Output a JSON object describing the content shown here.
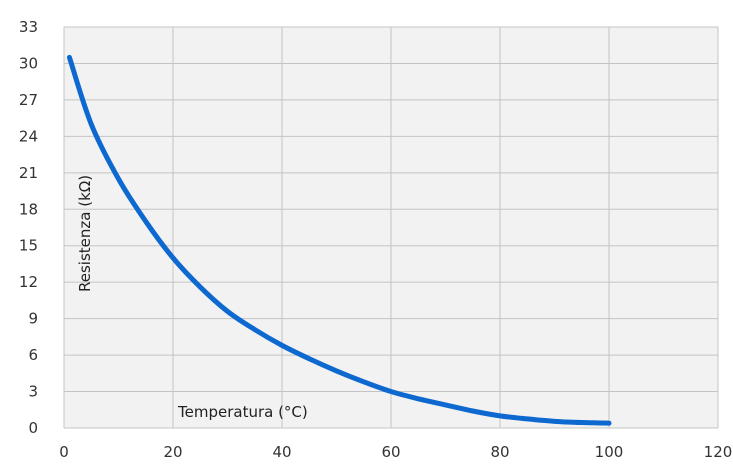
{
  "chart_data": {
    "type": "line",
    "title": "",
    "xlabel": "Temperatura (°C)",
    "ylabel": "Resistenza (kΩ)",
    "xlim": [
      0,
      120
    ],
    "ylim": [
      0,
      33
    ],
    "x_ticks": [
      "0",
      "20",
      "40",
      "60",
      "80",
      "100",
      "120"
    ],
    "y_ticks": [
      "0",
      "3",
      "6",
      "9",
      "12",
      "15",
      "18",
      "21",
      "24",
      "27",
      "30",
      "33"
    ],
    "grid": true,
    "legend": "none",
    "series": [
      {
        "x": [
          1,
          5,
          10,
          15,
          20,
          25,
          30,
          35,
          40,
          45,
          50,
          55,
          60,
          65,
          70,
          75,
          80,
          85,
          90,
          95,
          100
        ],
        "y": [
          30.5,
          25.0,
          20.5,
          17.0,
          14.0,
          11.6,
          9.6,
          8.1,
          6.8,
          5.7,
          4.7,
          3.8,
          3.0,
          2.4,
          1.9,
          1.4,
          1.0,
          0.75,
          0.55,
          0.45,
          0.4
        ],
        "color": "#0d68cf"
      }
    ]
  },
  "colors": {
    "plot_background": "#f2f2f2",
    "grid": "#c4c4c4",
    "curve": "#0d68cf"
  }
}
